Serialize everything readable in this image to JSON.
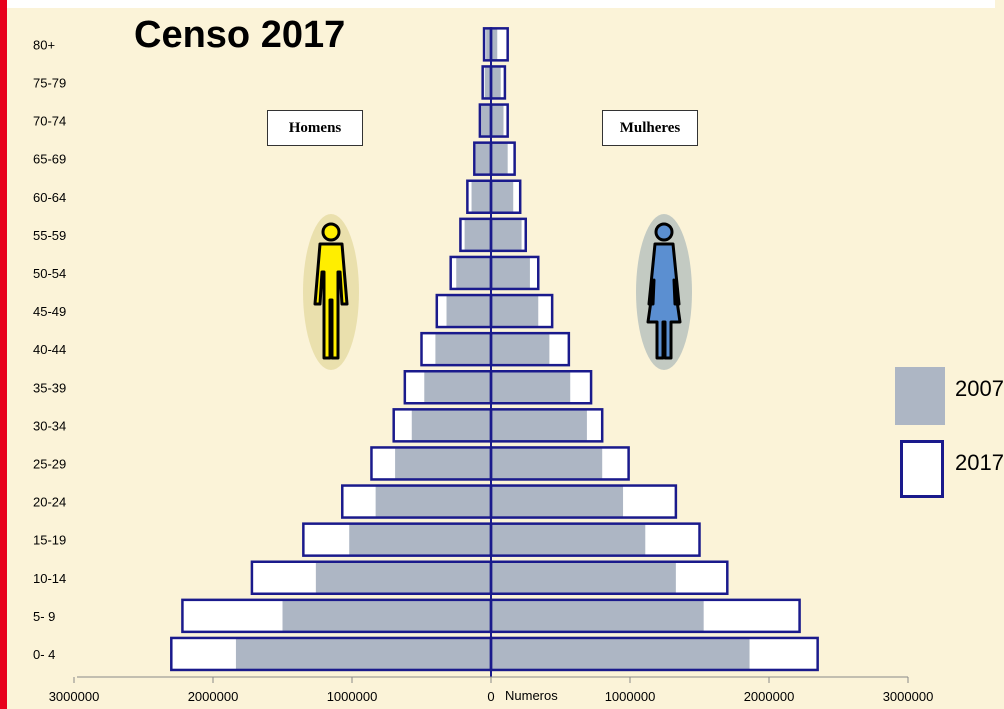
{
  "chart_data": {
    "type": "bar",
    "title": "Censo 2017",
    "categories": [
      "0- 4",
      "5- 9",
      "10-14",
      "15-19",
      "20-24",
      "25-29",
      "30-34",
      "35-39",
      "40-44",
      "45-49",
      "50-54",
      "55-59",
      "60-64",
      "65-69",
      "70-74",
      "75-79",
      "80+"
    ],
    "series": [
      {
        "name": "2007",
        "men": [
          1835000,
          1500000,
          1260000,
          1020000,
          830000,
          690000,
          570000,
          480000,
          400000,
          320000,
          250000,
          190000,
          140000,
          110000,
          70000,
          45000,
          35000
        ],
        "women": [
          1860000,
          1530000,
          1330000,
          1110000,
          950000,
          800000,
          690000,
          570000,
          420000,
          340000,
          280000,
          220000,
          160000,
          120000,
          90000,
          70000,
          45000
        ]
      },
      {
        "name": "2017",
        "men": [
          2300000,
          2220000,
          1720000,
          1350000,
          1070000,
          860000,
          700000,
          620000,
          500000,
          390000,
          290000,
          220000,
          170000,
          120000,
          80000,
          60000,
          50000
        ],
        "women": [
          2350000,
          2220000,
          1700000,
          1500000,
          1330000,
          990000,
          800000,
          720000,
          560000,
          440000,
          340000,
          250000,
          210000,
          170000,
          120000,
          100000,
          120000
        ]
      }
    ],
    "x_ticks": [
      "3000000",
      "2000000",
      "1000000",
      "0",
      "1000000",
      "2000000",
      "3000000"
    ],
    "xlabel": "Numeros",
    "xlim": [
      -3000000,
      3000000
    ],
    "legend_placement": "right",
    "colors": {
      "2007": "#adb6c4",
      "2017_outline": "#1a1a8c",
      "background": "#fbf3d8"
    }
  },
  "labels": {
    "men": "Homens",
    "women": "Mulheres"
  },
  "legend": {
    "item_2007": "2007",
    "item_2017": "2017"
  }
}
